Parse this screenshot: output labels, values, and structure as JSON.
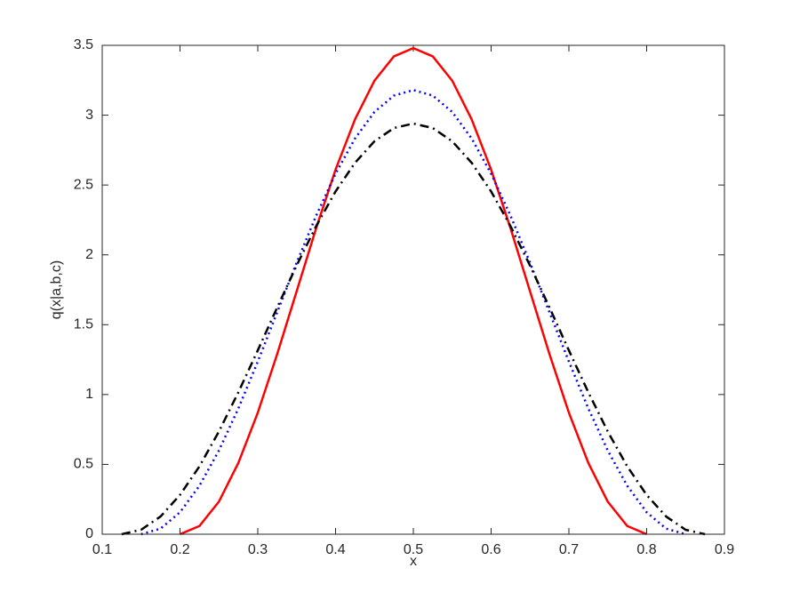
{
  "chart_data": {
    "type": "line",
    "xlabel": "x",
    "ylabel": "q(x|a,b,c)",
    "xlim": [
      0.1,
      0.9
    ],
    "xticks": [
      0.1,
      0.2,
      0.3,
      0.4,
      0.5,
      0.6,
      0.7,
      0.8,
      0.9
    ],
    "ylim": [
      0,
      3.5
    ],
    "yticks": [
      0,
      0.5,
      1,
      1.5,
      2,
      2.5,
      3,
      3.5
    ],
    "grid": false,
    "x": [
      0.125,
      0.15,
      0.175,
      0.2,
      0.225,
      0.25,
      0.275,
      0.3,
      0.325,
      0.35,
      0.375,
      0.4,
      0.425,
      0.45,
      0.475,
      0.5,
      0.525,
      0.55,
      0.575,
      0.6,
      0.625,
      0.65,
      0.675,
      0.7,
      0.725,
      0.75,
      0.775,
      0.8,
      0.825,
      0.85,
      0.875
    ],
    "series": [
      {
        "color": "#ff0000",
        "linestyle": "solid",
        "values": [
          null,
          null,
          null,
          0,
          0.059,
          0.233,
          0.51,
          0.87,
          1.29,
          1.74,
          2.19,
          2.61,
          2.97,
          3.247,
          3.421,
          3.48,
          3.421,
          3.247,
          2.97,
          2.61,
          2.19,
          1.74,
          1.29,
          0.87,
          0.51,
          0.233,
          0.059,
          0,
          null,
          null,
          null
        ]
      },
      {
        "color": "#0000ff",
        "linestyle": "dotted",
        "values": [
          null,
          0,
          0.04,
          0.157,
          0.347,
          0.599,
          0.9,
          1.236,
          1.59,
          1.944,
          2.28,
          2.581,
          2.833,
          3.023,
          3.14,
          3.18,
          3.14,
          3.023,
          2.833,
          2.581,
          2.28,
          1.944,
          1.59,
          1.236,
          0.9,
          0.599,
          0.347,
          0.157,
          0.04,
          0,
          null
        ]
      },
      {
        "color": "#000000",
        "linestyle": "dashdot",
        "values": [
          0,
          0.032,
          0.127,
          0.281,
          0.486,
          0.735,
          1.016,
          1.316,
          1.624,
          1.924,
          2.205,
          2.454,
          2.659,
          2.813,
          2.908,
          2.94,
          2.908,
          2.813,
          2.659,
          2.454,
          2.205,
          1.924,
          1.624,
          1.316,
          1.016,
          0.735,
          0.486,
          0.281,
          0.127,
          0.032,
          0
        ]
      }
    ]
  }
}
